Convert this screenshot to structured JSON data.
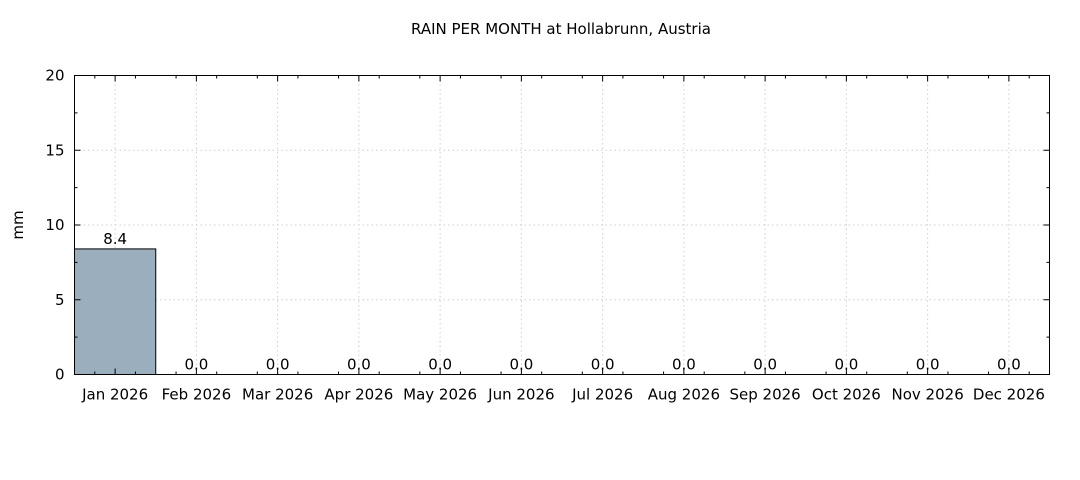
{
  "chart_data": {
    "type": "bar",
    "title": "RAIN PER MONTH at Hollabrunn, Austria",
    "xlabel": "",
    "ylabel": "mm",
    "ylim": [
      0,
      20
    ],
    "yticks": [
      0,
      5,
      10,
      15,
      20
    ],
    "grid": true,
    "categories": [
      "Jan 2026",
      "Feb 2026",
      "Mar 2026",
      "Apr 2026",
      "May 2026",
      "Jun 2026",
      "Jul 2026",
      "Aug 2026",
      "Sep 2026",
      "Oct 2026",
      "Nov 2026",
      "Dec 2026"
    ],
    "values": [
      8.4,
      0.0,
      0.0,
      0.0,
      0.0,
      0.0,
      0.0,
      0.0,
      0.0,
      0.0,
      0.0,
      0.0
    ],
    "data_labels": [
      "8.4",
      "0.0",
      "0.0",
      "0.0",
      "0.0",
      "0.0",
      "0.0",
      "0.0",
      "0.0",
      "0.0",
      "0.0",
      "0.0"
    ],
    "bar_color": "#9aaebd"
  }
}
